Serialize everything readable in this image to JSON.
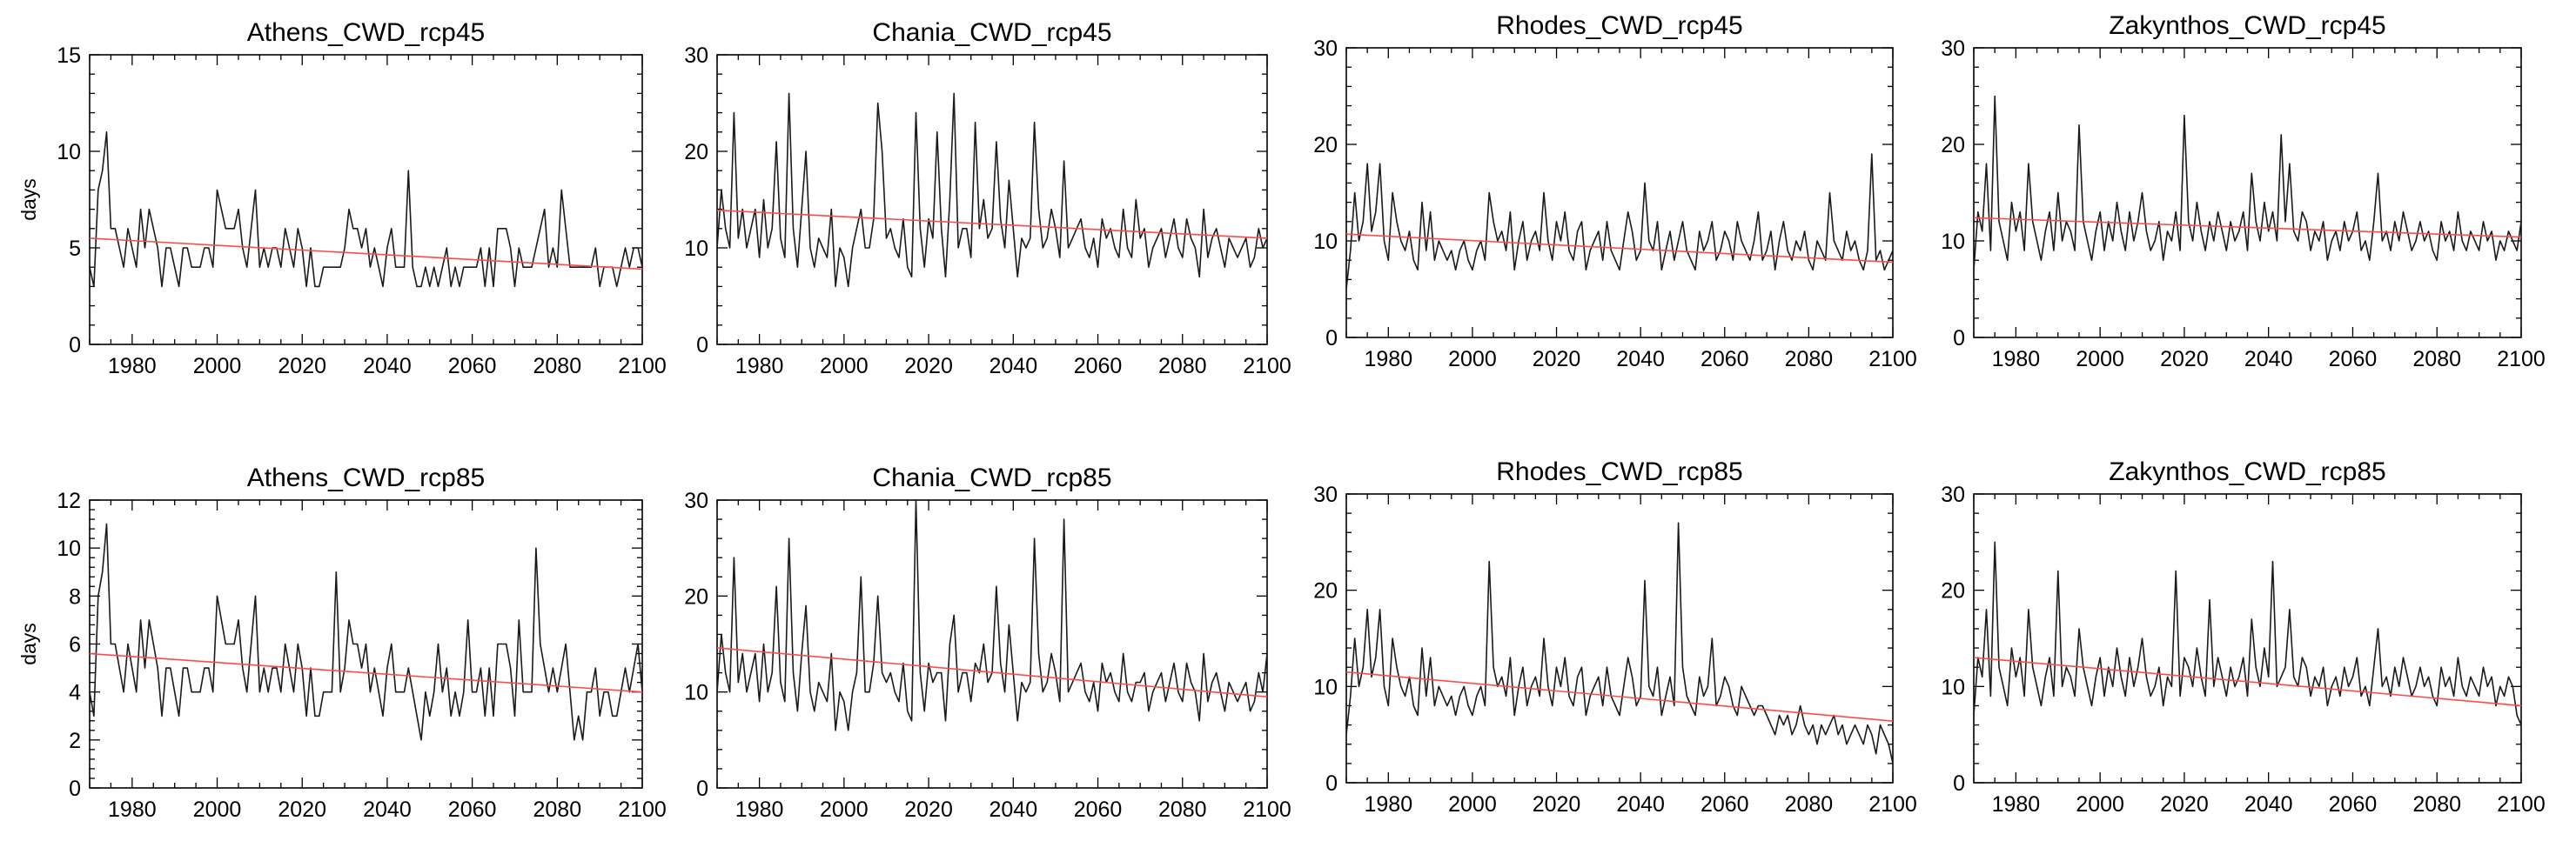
{
  "colors": {
    "series": "#1a1a1a",
    "trend": "#ff4a4a",
    "axis": "#000000"
  },
  "chart_data": [
    {
      "type": "line",
      "title": "Athens_CWD_rcp45",
      "ylabel": "days",
      "xlim": [
        1970,
        2100
      ],
      "ylim": [
        0,
        15
      ],
      "yticks": [
        0,
        5,
        10,
        15
      ],
      "xticks": [
        1980,
        2000,
        2020,
        2040,
        2060,
        2080,
        2100
      ],
      "trend": [
        5.5,
        3.9
      ],
      "x_start": 1970,
      "values": [
        4,
        3,
        8,
        9,
        11,
        6,
        6,
        5,
        4,
        6,
        5,
        4,
        7,
        5,
        7,
        6,
        5,
        3,
        5,
        5,
        4,
        3,
        5,
        5,
        4,
        4,
        4,
        5,
        5,
        4,
        8,
        7,
        6,
        6,
        6,
        7,
        5,
        4,
        6,
        8,
        4,
        5,
        4,
        5,
        5,
        4,
        6,
        5,
        4,
        6,
        5,
        3,
        5,
        3,
        3,
        4,
        4,
        4,
        4,
        4,
        5,
        7,
        6,
        6,
        5,
        6,
        4,
        5,
        4,
        3,
        5,
        6,
        4,
        4,
        4,
        9,
        4,
        3,
        3,
        4,
        3,
        4,
        3,
        4,
        5,
        3,
        4,
        3,
        4,
        4,
        4,
        4,
        5,
        3,
        5,
        3,
        6,
        6,
        6,
        5,
        3,
        5,
        4,
        4,
        4,
        5,
        6,
        7,
        4,
        5,
        4,
        8,
        6,
        4,
        4,
        4,
        4,
        4,
        4,
        5,
        3,
        4,
        4,
        4,
        3,
        4,
        5,
        4,
        5,
        5,
        4
      ]
    },
    {
      "type": "line",
      "title": "Chania_CWD_rcp45",
      "ylabel": "",
      "xlim": [
        1970,
        2100
      ],
      "ylim": [
        0,
        30
      ],
      "yticks": [
        0,
        10,
        20,
        30
      ],
      "xticks": [
        1980,
        2000,
        2020,
        2040,
        2060,
        2080,
        2100
      ],
      "trend": [
        13.9,
        11.0
      ],
      "x_start": 1970,
      "values": [
        10,
        16,
        12,
        10,
        24,
        11,
        14,
        10,
        12,
        14,
        9,
        15,
        10,
        12,
        21,
        11,
        9,
        26,
        12,
        8,
        14,
        20,
        10,
        8,
        11,
        10,
        9,
        14,
        6,
        10,
        9,
        6,
        10,
        12,
        14,
        10,
        10,
        13,
        25,
        20,
        11,
        12,
        10,
        9,
        13,
        8,
        7,
        24,
        12,
        8,
        13,
        11,
        22,
        12,
        7,
        15,
        26,
        10,
        12,
        12,
        9,
        23,
        12,
        15,
        11,
        12,
        21,
        13,
        10,
        17,
        12,
        7,
        11,
        10,
        11,
        23,
        14,
        10,
        11,
        14,
        12,
        9,
        19,
        10,
        11,
        12,
        13,
        10,
        9,
        11,
        8,
        13,
        11,
        12,
        10,
        9,
        14,
        10,
        9,
        15,
        11,
        12,
        8,
        10,
        11,
        12,
        9,
        11,
        13,
        10,
        9,
        13,
        11,
        10,
        7,
        14,
        9,
        11,
        12,
        10,
        8,
        11,
        10,
        9,
        10,
        11,
        8,
        9,
        12,
        10,
        11
      ]
    },
    {
      "type": "line",
      "title": "Rhodes_CWD_rcp45",
      "ylabel": "",
      "xlim": [
        1970,
        2100
      ],
      "ylim": [
        0,
        30
      ],
      "yticks": [
        0,
        10,
        20,
        30
      ],
      "xticks": [
        1980,
        2000,
        2020,
        2040,
        2060,
        2080,
        2100
      ],
      "trend": [
        10.7,
        7.8
      ],
      "x_start": 1970,
      "values": [
        5,
        9,
        15,
        10,
        12,
        18,
        11,
        13,
        18,
        10,
        8,
        15,
        12,
        10,
        9,
        11,
        8,
        7,
        14,
        9,
        13,
        8,
        10,
        9,
        8,
        9,
        7,
        9,
        10,
        8,
        7,
        9,
        10,
        8,
        15,
        12,
        10,
        11,
        9,
        13,
        7,
        10,
        12,
        8,
        10,
        11,
        9,
        15,
        10,
        8,
        12,
        10,
        13,
        9,
        8,
        11,
        12,
        7,
        9,
        10,
        11,
        8,
        12,
        9,
        8,
        7,
        10,
        13,
        11,
        8,
        9,
        16,
        10,
        9,
        12,
        7,
        9,
        11,
        8,
        10,
        12,
        9,
        8,
        7,
        11,
        9,
        10,
        12,
        8,
        9,
        11,
        10,
        8,
        12,
        10,
        9,
        8,
        10,
        13,
        8,
        9,
        11,
        7,
        10,
        12,
        9,
        8,
        10,
        9,
        11,
        8,
        7,
        10,
        9,
        8,
        15,
        10,
        9,
        8,
        11,
        9,
        10,
        8,
        7,
        9,
        19,
        8,
        9,
        7,
        8,
        9
      ]
    },
    {
      "type": "line",
      "title": "Zakynthos_CWD_rcp45",
      "ylabel": "",
      "xlim": [
        1970,
        2100
      ],
      "ylim": [
        0,
        30
      ],
      "yticks": [
        0,
        10,
        20,
        30
      ],
      "xticks": [
        1980,
        2000,
        2020,
        2040,
        2060,
        2080,
        2100
      ],
      "trend": [
        12.4,
        10.4
      ],
      "x_start": 1970,
      "values": [
        7,
        13,
        11,
        18,
        9,
        25,
        12,
        10,
        8,
        14,
        11,
        13,
        9,
        18,
        12,
        10,
        8,
        11,
        13,
        9,
        15,
        10,
        12,
        11,
        9,
        22,
        12,
        10,
        8,
        11,
        13,
        9,
        12,
        10,
        14,
        11,
        9,
        13,
        10,
        12,
        15,
        11,
        9,
        10,
        12,
        8,
        11,
        10,
        13,
        9,
        23,
        12,
        10,
        14,
        11,
        9,
        12,
        10,
        13,
        11,
        9,
        12,
        10,
        11,
        13,
        9,
        17,
        12,
        10,
        14,
        11,
        13,
        10,
        21,
        12,
        18,
        11,
        10,
        13,
        12,
        9,
        11,
        10,
        12,
        8,
        10,
        11,
        9,
        12,
        10,
        11,
        13,
        9,
        10,
        8,
        12,
        17,
        10,
        11,
        9,
        12,
        10,
        13,
        11,
        9,
        10,
        12,
        10,
        11,
        9,
        8,
        12,
        10,
        11,
        9,
        13,
        10,
        9,
        11,
        10,
        9,
        12,
        10,
        11,
        8,
        10,
        9,
        11,
        10,
        9,
        12
      ]
    },
    {
      "type": "line",
      "title": "Athens_CWD_rcp85",
      "ylabel": "days",
      "xlim": [
        1970,
        2100
      ],
      "ylim": [
        0,
        12
      ],
      "yticks": [
        0,
        2,
        4,
        6,
        8,
        10,
        12
      ],
      "xticks": [
        1980,
        2000,
        2020,
        2040,
        2060,
        2080,
        2100
      ],
      "trend": [
        5.6,
        4.0
      ],
      "x_start": 1970,
      "values": [
        4,
        3,
        8,
        9,
        11,
        6,
        6,
        5,
        4,
        6,
        5,
        4,
        7,
        5,
        7,
        6,
        5,
        3,
        5,
        5,
        4,
        3,
        5,
        5,
        4,
        4,
        4,
        5,
        5,
        4,
        8,
        7,
        6,
        6,
        6,
        7,
        5,
        4,
        6,
        8,
        4,
        5,
        4,
        5,
        5,
        4,
        6,
        5,
        4,
        6,
        5,
        3,
        5,
        3,
        3,
        4,
        4,
        4,
        9,
        4,
        5,
        7,
        6,
        6,
        5,
        6,
        4,
        5,
        4,
        3,
        5,
        6,
        4,
        4,
        4,
        5,
        4,
        3,
        2,
        4,
        3,
        4,
        6,
        4,
        5,
        3,
        4,
        3,
        4,
        7,
        4,
        4,
        5,
        3,
        5,
        3,
        6,
        6,
        6,
        5,
        3,
        7,
        4,
        4,
        4,
        10,
        6,
        5,
        4,
        5,
        4,
        5,
        6,
        4,
        2,
        3,
        2,
        4,
        4,
        5,
        3,
        4,
        4,
        3,
        3,
        4,
        5,
        4,
        5,
        6,
        4
      ]
    },
    {
      "type": "line",
      "title": "Chania_CWD_rcp85",
      "ylabel": "",
      "xlim": [
        1970,
        2100
      ],
      "ylim": [
        0,
        30
      ],
      "yticks": [
        0,
        10,
        20,
        30
      ],
      "xticks": [
        1980,
        2000,
        2020,
        2040,
        2060,
        2080,
        2100
      ],
      "trend": [
        14.6,
        9.5
      ],
      "x_start": 1970,
      "values": [
        10,
        16,
        12,
        10,
        24,
        11,
        14,
        10,
        12,
        14,
        9,
        15,
        10,
        12,
        21,
        11,
        9,
        26,
        12,
        8,
        14,
        19,
        10,
        8,
        11,
        10,
        9,
        14,
        6,
        10,
        9,
        6,
        10,
        12,
        22,
        10,
        10,
        13,
        20,
        12,
        11,
        12,
        10,
        9,
        13,
        8,
        7,
        30,
        12,
        8,
        13,
        11,
        12,
        12,
        7,
        15,
        18,
        10,
        12,
        12,
        9,
        13,
        12,
        15,
        11,
        12,
        21,
        13,
        10,
        17,
        12,
        7,
        11,
        10,
        11,
        26,
        14,
        10,
        11,
        14,
        12,
        9,
        28,
        10,
        11,
        12,
        13,
        10,
        9,
        11,
        8,
        13,
        11,
        12,
        10,
        9,
        14,
        10,
        9,
        11,
        11,
        12,
        8,
        10,
        11,
        12,
        9,
        11,
        13,
        10,
        9,
        13,
        11,
        10,
        7,
        14,
        9,
        11,
        12,
        10,
        8,
        11,
        10,
        9,
        10,
        11,
        8,
        9,
        12,
        10,
        14
      ]
    },
    {
      "type": "line",
      "title": "Rhodes_CWD_rcp85",
      "ylabel": "",
      "xlim": [
        1970,
        2100
      ],
      "ylim": [
        0,
        30
      ],
      "yticks": [
        0,
        10,
        20,
        30
      ],
      "xticks": [
        1980,
        2000,
        2020,
        2040,
        2060,
        2080,
        2100
      ],
      "trend": [
        11.5,
        6.4
      ],
      "x_start": 1970,
      "values": [
        5,
        9,
        15,
        10,
        12,
        18,
        11,
        13,
        18,
        10,
        8,
        15,
        12,
        10,
        9,
        11,
        8,
        7,
        14,
        9,
        13,
        8,
        10,
        9,
        8,
        9,
        7,
        9,
        10,
        8,
        7,
        9,
        10,
        8,
        23,
        12,
        10,
        11,
        9,
        13,
        7,
        10,
        12,
        8,
        10,
        11,
        9,
        15,
        10,
        8,
        12,
        10,
        13,
        9,
        8,
        11,
        12,
        7,
        9,
        10,
        11,
        8,
        12,
        9,
        8,
        7,
        10,
        13,
        11,
        8,
        9,
        21,
        10,
        9,
        12,
        7,
        9,
        11,
        8,
        27,
        12,
        9,
        8,
        7,
        11,
        9,
        10,
        15,
        8,
        9,
        11,
        10,
        8,
        7,
        10,
        9,
        8,
        7,
        8,
        8,
        7,
        6,
        5,
        7,
        6,
        7,
        5,
        6,
        8,
        6,
        5,
        6,
        4,
        6,
        5,
        6,
        7,
        5,
        6,
        4,
        5,
        6,
        5,
        4,
        6,
        5,
        3,
        6,
        5,
        4,
        2
      ]
    },
    {
      "type": "line",
      "title": "Zakynthos_CWD_rcp85",
      "ylabel": "",
      "xlim": [
        1970,
        2100
      ],
      "ylim": [
        0,
        30
      ],
      "yticks": [
        0,
        10,
        20,
        30
      ],
      "xticks": [
        1980,
        2000,
        2020,
        2040,
        2060,
        2080,
        2100
      ],
      "trend": [
        13.0,
        8.0
      ],
      "x_start": 1970,
      "values": [
        7,
        13,
        11,
        18,
        9,
        25,
        12,
        10,
        8,
        14,
        11,
        13,
        9,
        18,
        12,
        10,
        8,
        11,
        13,
        9,
        22,
        10,
        12,
        11,
        9,
        16,
        12,
        10,
        8,
        11,
        13,
        9,
        12,
        10,
        14,
        11,
        9,
        13,
        10,
        12,
        15,
        11,
        9,
        10,
        12,
        8,
        11,
        10,
        22,
        9,
        13,
        12,
        10,
        14,
        11,
        9,
        19,
        10,
        13,
        11,
        9,
        12,
        10,
        11,
        13,
        9,
        17,
        12,
        10,
        14,
        11,
        23,
        10,
        11,
        12,
        18,
        11,
        10,
        13,
        12,
        9,
        11,
        10,
        12,
        8,
        10,
        11,
        9,
        12,
        10,
        11,
        13,
        9,
        10,
        8,
        12,
        16,
        10,
        11,
        9,
        12,
        10,
        13,
        11,
        9,
        10,
        12,
        10,
        11,
        9,
        8,
        12,
        10,
        11,
        9,
        13,
        10,
        9,
        11,
        10,
        9,
        12,
        10,
        11,
        8,
        10,
        9,
        11,
        10,
        7,
        6
      ]
    }
  ]
}
